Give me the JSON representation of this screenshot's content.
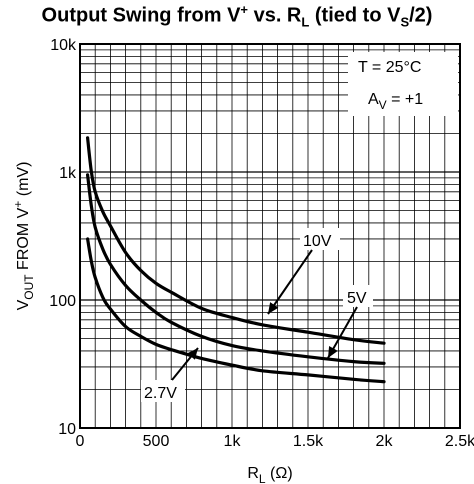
{
  "chart_data": {
    "type": "line",
    "title": {
      "prefix": "Output Swing from V",
      "sup1": "+",
      "middle": " vs. R",
      "sub1": "L",
      "after_rl": " (tied to V",
      "sub2": "S",
      "suffix": "/2)"
    },
    "xlabel": {
      "main": "R",
      "sub": "L",
      "suffix": " (Ω)"
    },
    "ylabel": {
      "v": "V",
      "sub": "OUT",
      "mid": " FROM V",
      "sup": "+",
      "suffix": " (mV)"
    },
    "x_scale": "linear",
    "y_scale": "log",
    "xlim": [
      0,
      2500
    ],
    "ylim": [
      10,
      10000
    ],
    "x_ticks": [
      {
        "value": 0,
        "label": "0"
      },
      {
        "value": 500,
        "label": "500"
      },
      {
        "value": 1000,
        "label": "1k"
      },
      {
        "value": 1500,
        "label": "1.5k"
      },
      {
        "value": 2000,
        "label": "2k"
      },
      {
        "value": 2500,
        "label": "2.5k"
      }
    ],
    "y_ticks": [
      {
        "value": 10,
        "label": "10"
      },
      {
        "value": 100,
        "label": "100"
      },
      {
        "value": 1000,
        "label": "1k"
      },
      {
        "value": 10000,
        "label": "10k"
      }
    ],
    "grid": true,
    "series": [
      {
        "name": "10V",
        "x": [
          50,
          75,
          100,
          150,
          200,
          300,
          400,
          500,
          600,
          800,
          1000,
          1200,
          1500,
          1800,
          2000
        ],
        "y": [
          1850,
          1000,
          700,
          490,
          380,
          235,
          170,
          135,
          115,
          86,
          73,
          64,
          56,
          49,
          46
        ]
      },
      {
        "name": "5V",
        "x": [
          50,
          75,
          100,
          150,
          200,
          300,
          400,
          500,
          600,
          800,
          1000,
          1200,
          1500,
          1800,
          2000
        ],
        "y": [
          950,
          540,
          370,
          250,
          190,
          130,
          100,
          80,
          67,
          52,
          44,
          40,
          36,
          33,
          32
        ]
      },
      {
        "name": "2.7V",
        "x": [
          50,
          75,
          100,
          150,
          200,
          300,
          400,
          500,
          600,
          800,
          1000,
          1200,
          1500,
          1800,
          2000
        ],
        "y": [
          300,
          200,
          150,
          105,
          85,
          62,
          52,
          45,
          41,
          35,
          31,
          28,
          26,
          24,
          23
        ]
      }
    ],
    "annotations": {
      "temp": "T = 25°C",
      "gain_a": "A",
      "gain_sub": "V",
      "gain_rest": " = +1",
      "label_10v": "10V",
      "label_5v": "5V",
      "label_27v": "2.7V"
    }
  }
}
